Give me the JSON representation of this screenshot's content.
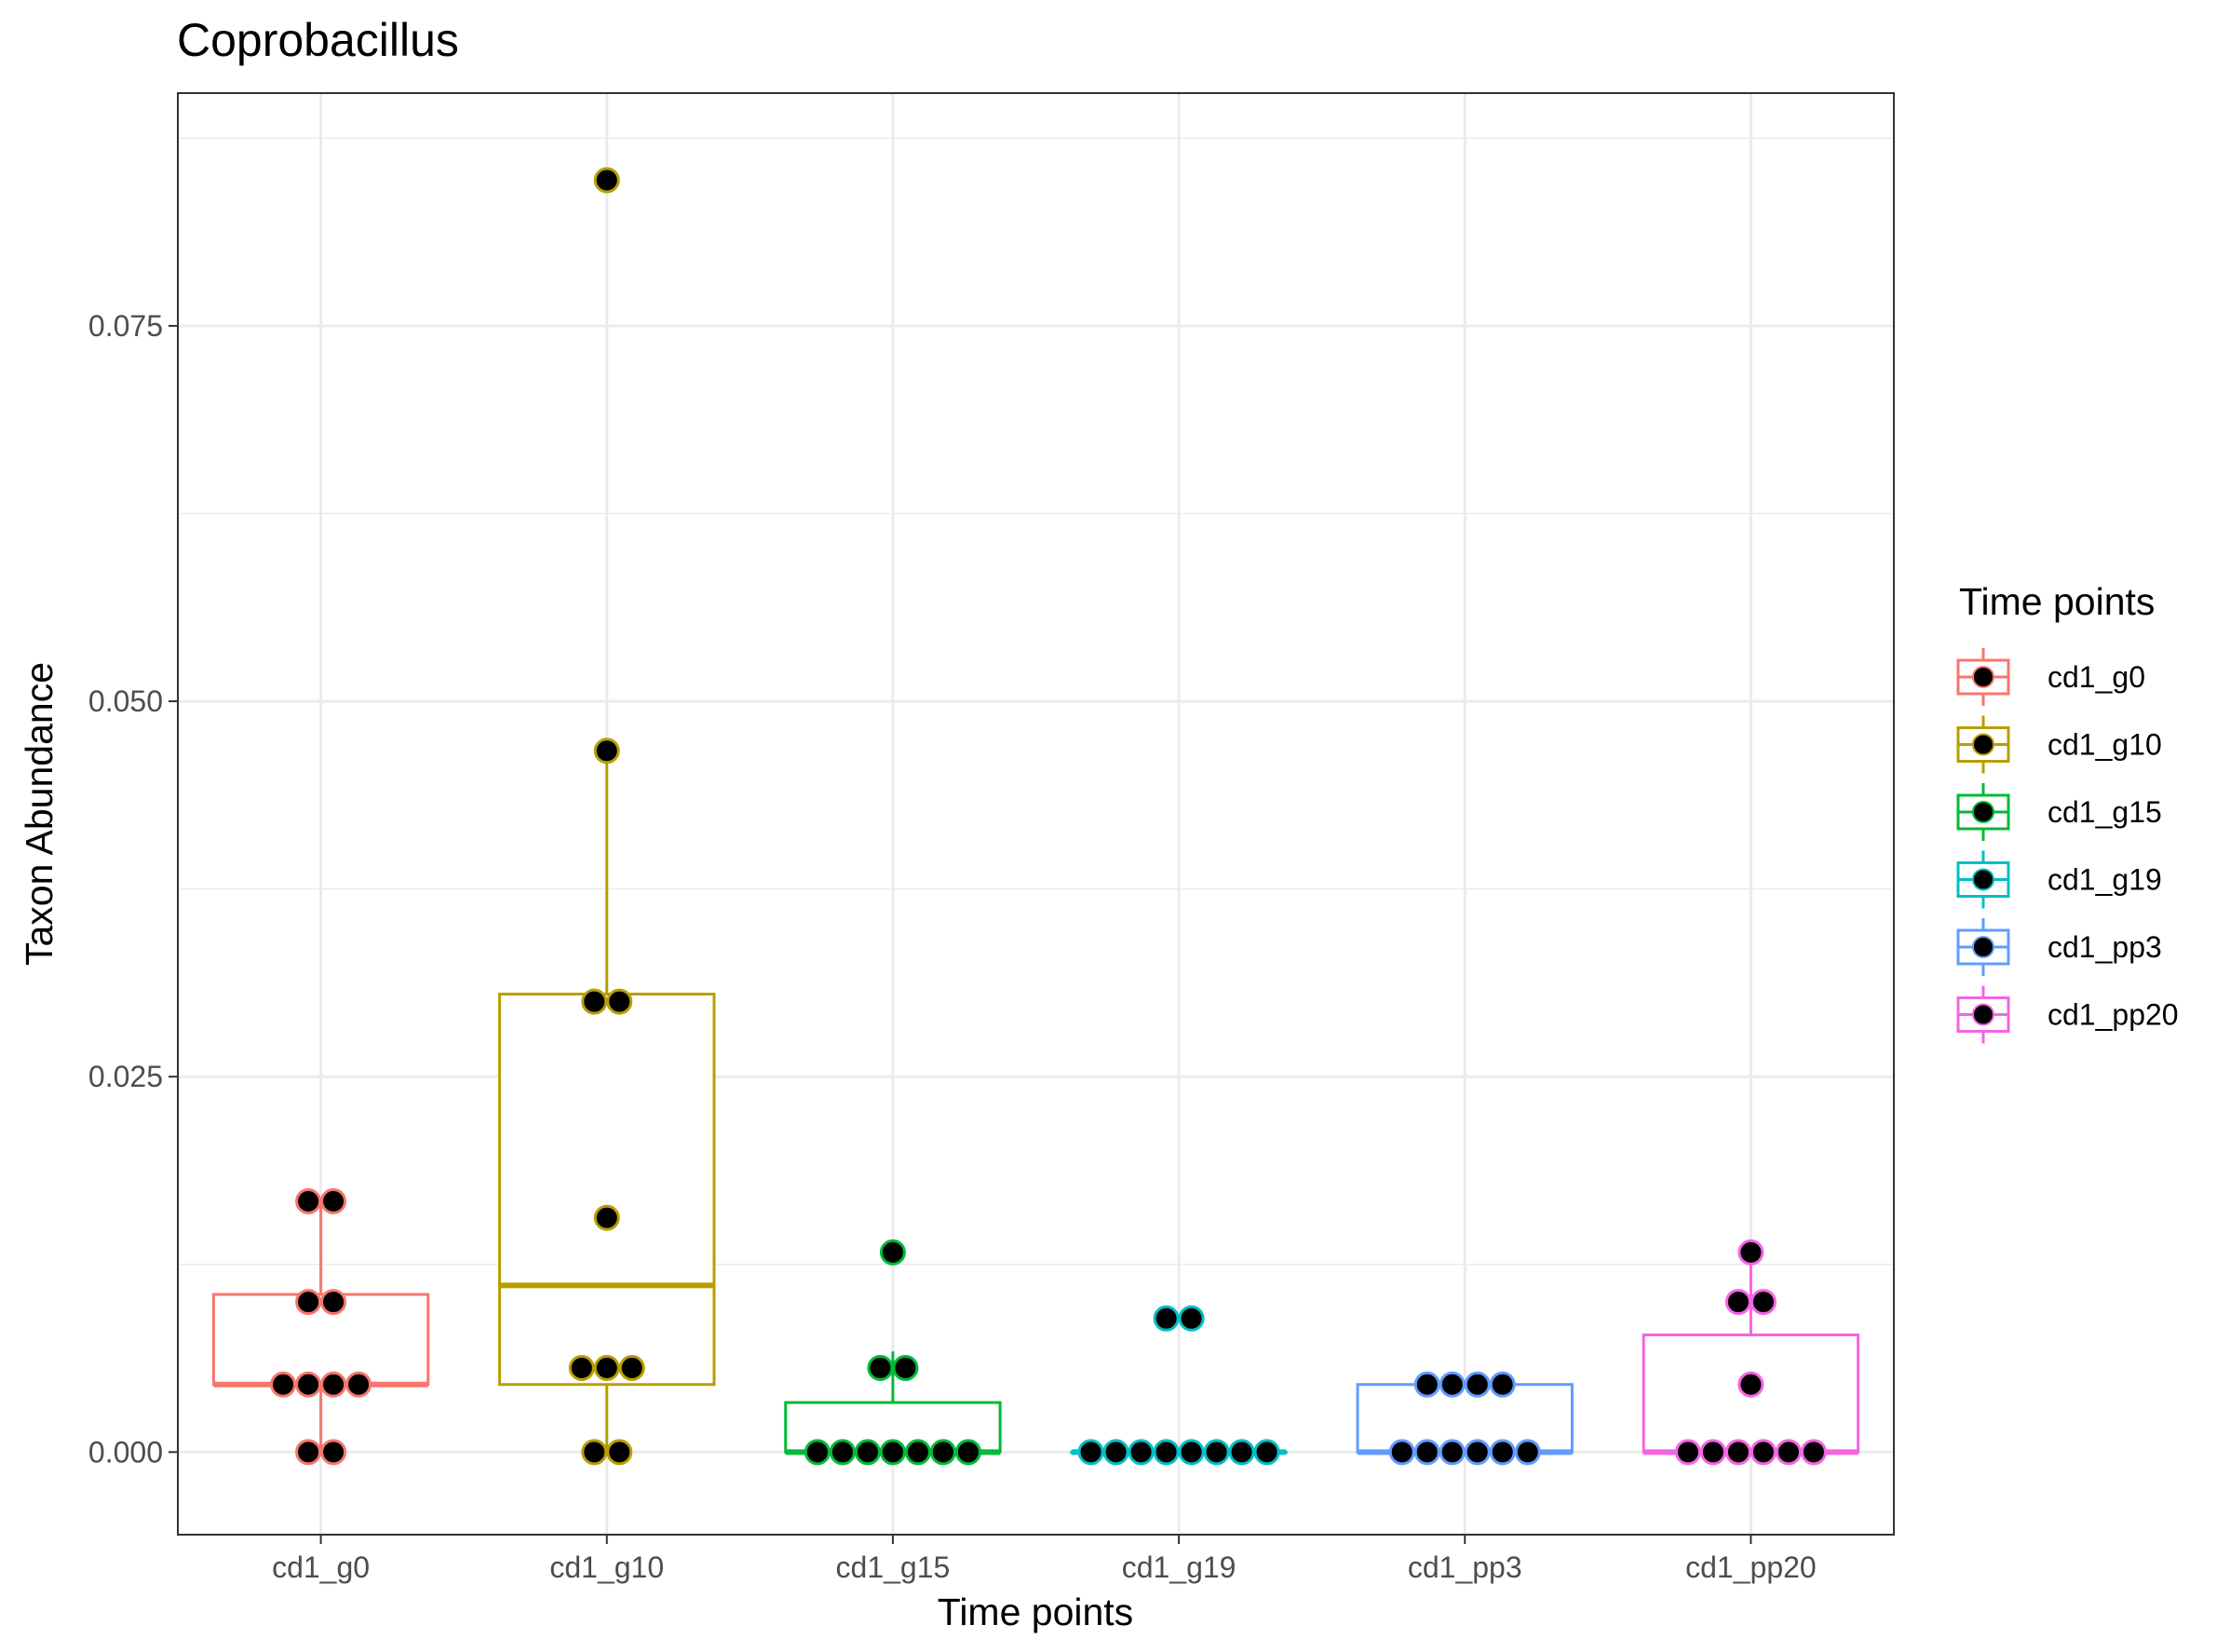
{
  "chart_data": {
    "type": "boxplot",
    "title": "Coprobacillus",
    "xlabel": "Time points",
    "ylabel": "Taxon Abundance",
    "ylim": [
      -0.0055,
      0.0905
    ],
    "yticks": [
      0.0,
      0.025,
      0.05,
      0.075
    ],
    "ytick_labels": [
      "0.000",
      "0.025",
      "0.050",
      "0.075"
    ],
    "grid": true,
    "legend": {
      "title": "Time points",
      "position": "right"
    },
    "categories": [
      "cd1_g0",
      "cd1_g10",
      "cd1_g15",
      "cd1_g19",
      "cd1_pp3",
      "cd1_pp20"
    ],
    "colors": [
      "#F8766D",
      "#B79F00",
      "#00BA38",
      "#00BFC4",
      "#619CFF",
      "#F564E3"
    ],
    "boxes": [
      {
        "q1": 0.0045,
        "median": 0.0045,
        "q3": 0.0105,
        "whisker_low": 0.0,
        "whisker_high": 0.0167
      },
      {
        "q1": 0.0045,
        "median": 0.0111,
        "q3": 0.0305,
        "whisker_low": 0.0,
        "whisker_high": 0.0467
      },
      {
        "q1": 0.0,
        "median": 0.0,
        "q3": 0.0033,
        "whisker_low": 0.0,
        "whisker_high": 0.0067
      },
      {
        "q1": 0.0,
        "median": 0.0,
        "q3": 0.0,
        "whisker_low": 0.0,
        "whisker_high": 0.0
      },
      {
        "q1": 0.0,
        "median": 0.0,
        "q3": 0.0045,
        "whisker_low": 0.0,
        "whisker_high": 0.0045
      },
      {
        "q1": 0.0,
        "median": 0.0,
        "q3": 0.0078,
        "whisker_low": 0.0,
        "whisker_high": 0.0133
      }
    ],
    "points": [
      [
        0.0,
        0.0,
        0.0045,
        0.0045,
        0.0045,
        0.0045,
        0.01,
        0.01,
        0.0167,
        0.0167
      ],
      [
        0.0,
        0.0,
        0.0056,
        0.0056,
        0.0056,
        0.0156,
        0.03,
        0.03,
        0.0467,
        0.0847
      ],
      [
        0.0,
        0.0,
        0.0,
        0.0,
        0.0,
        0.0,
        0.0,
        0.0056,
        0.0056,
        0.0133
      ],
      [
        0.0,
        0.0,
        0.0,
        0.0,
        0.0,
        0.0,
        0.0,
        0.0,
        0.0089,
        0.0089
      ],
      [
        0.0,
        0.0,
        0.0,
        0.0,
        0.0,
        0.0,
        0.0045,
        0.0045,
        0.0045,
        0.0045
      ],
      [
        0.0,
        0.0,
        0.0,
        0.0,
        0.0,
        0.0,
        0.0045,
        0.01,
        0.01,
        0.0133
      ]
    ]
  }
}
